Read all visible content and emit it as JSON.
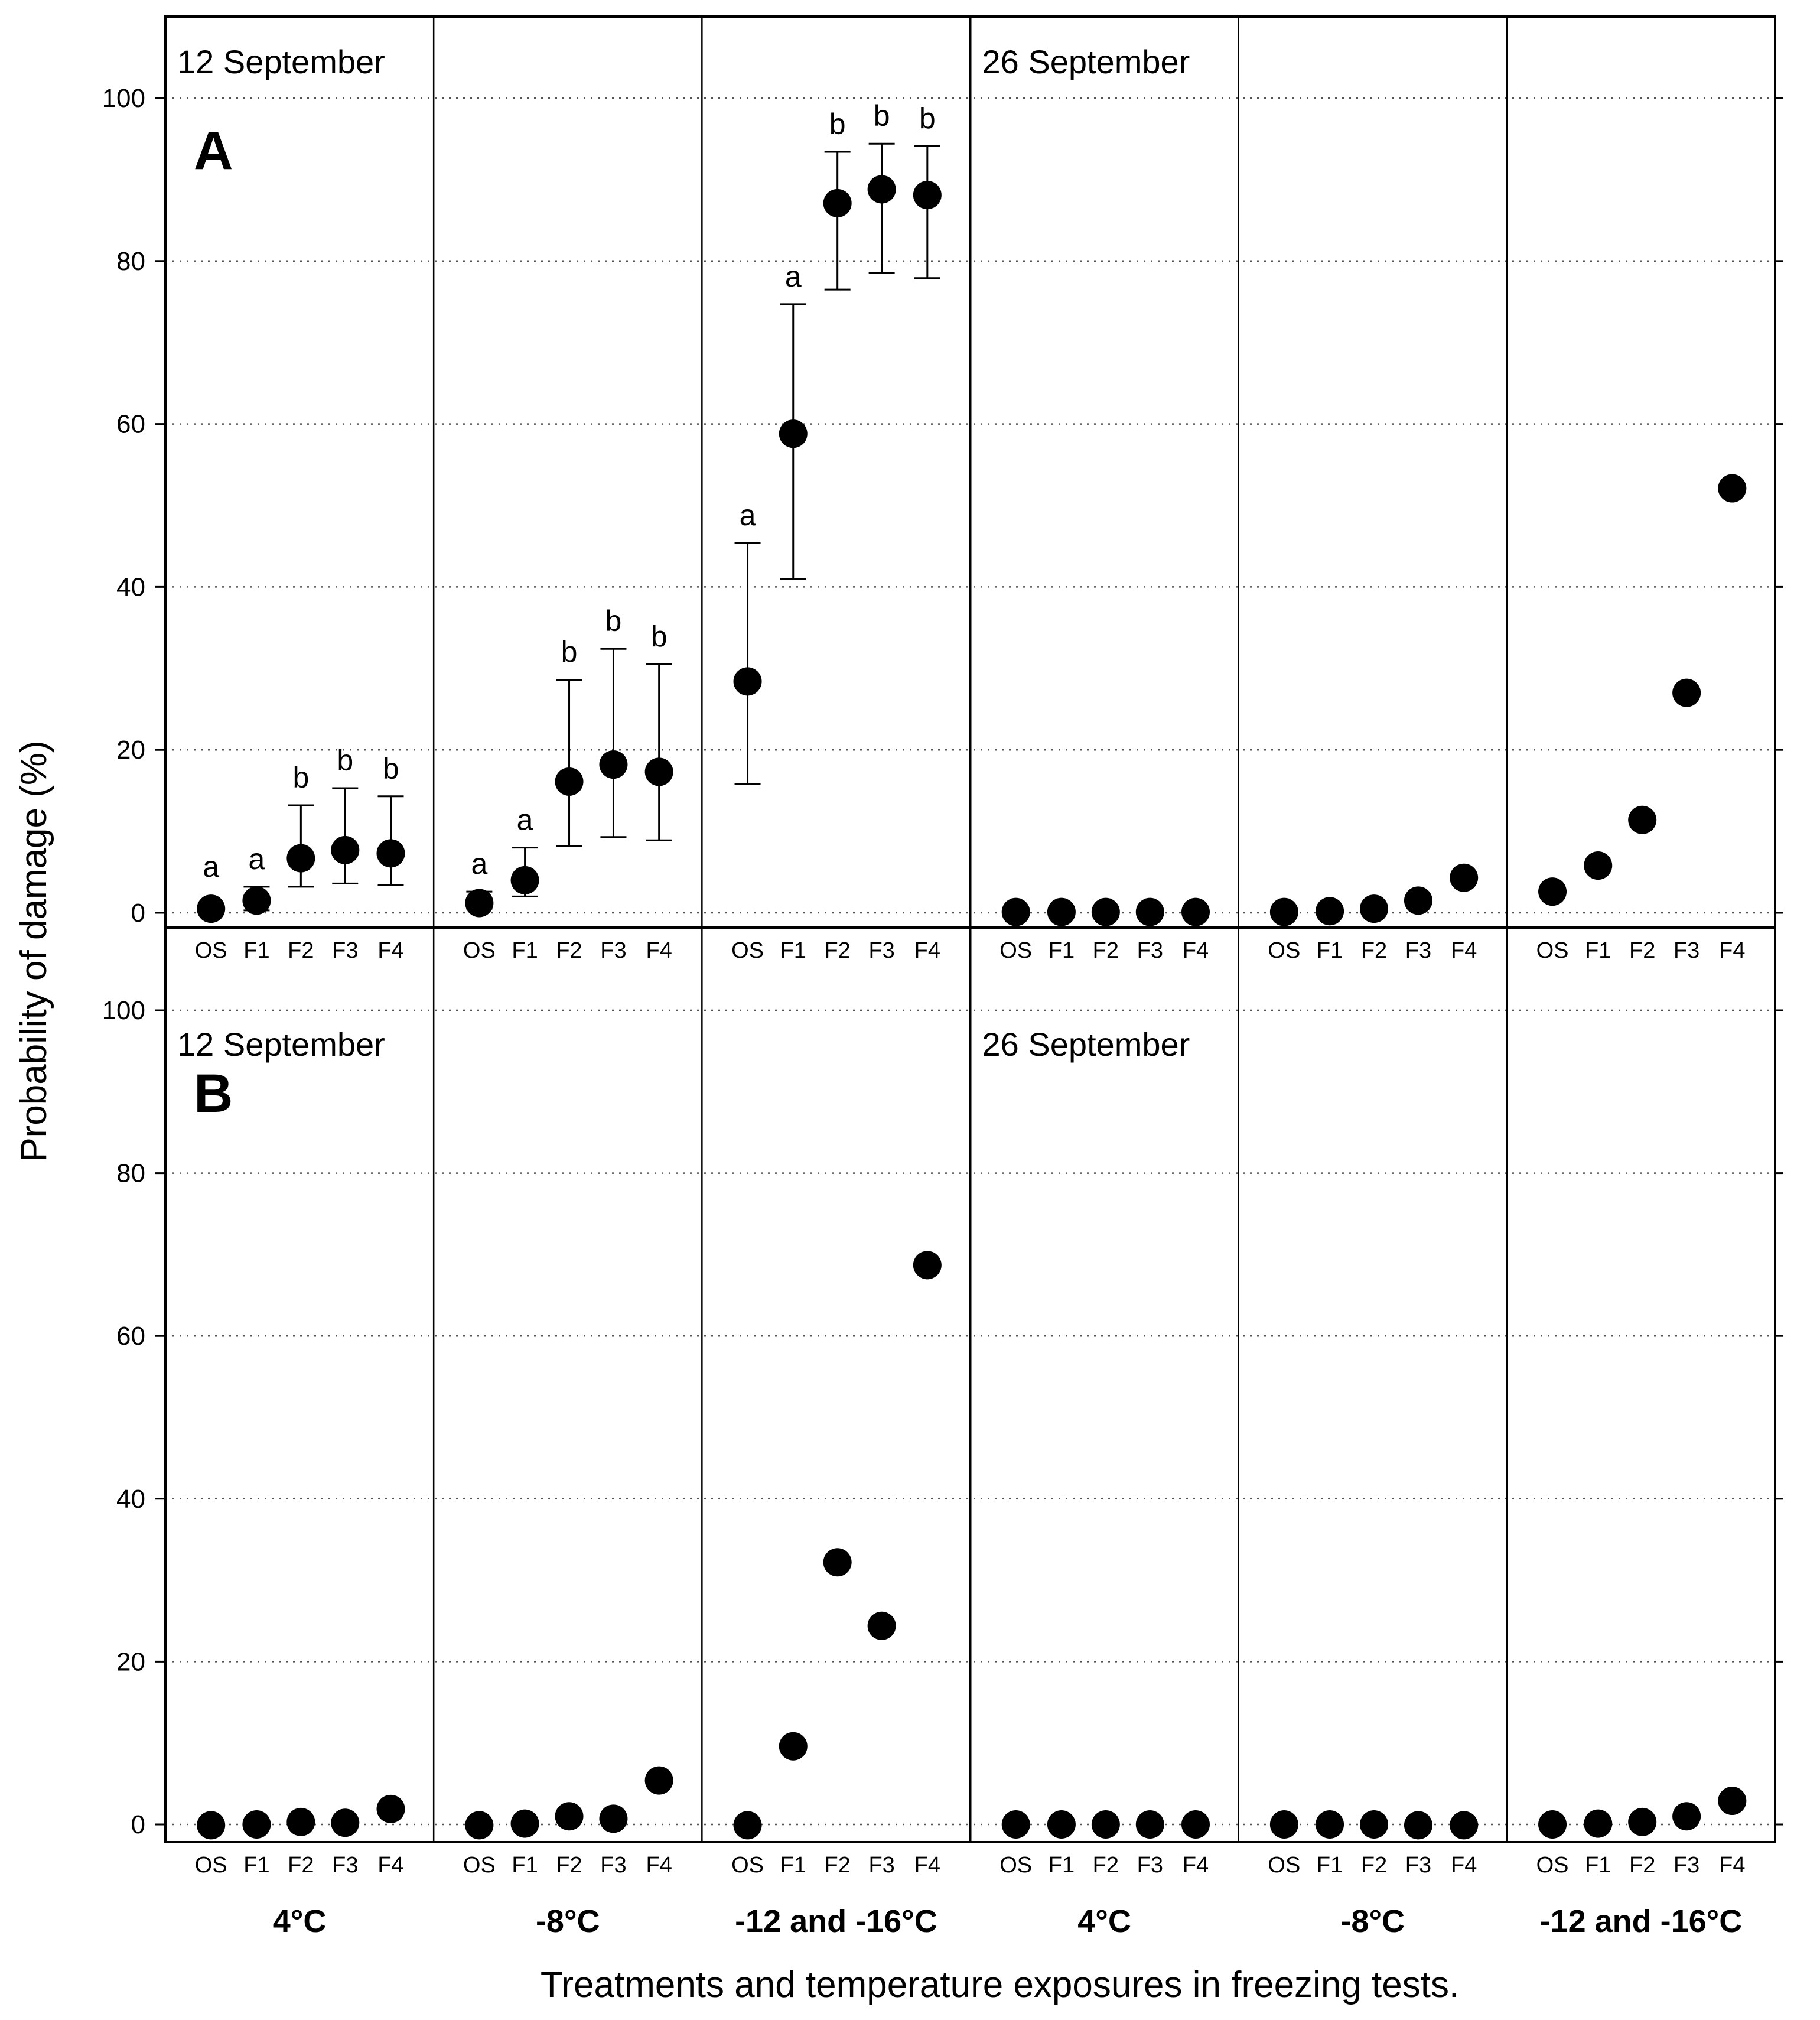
{
  "chart_data": {
    "type": "scatter",
    "y_axis_title": "Probability of damage (%)",
    "x_axis_title": "Treatments and temperature exposures in freezing tests.",
    "categories": [
      "OS",
      "F1",
      "F2",
      "F3",
      "F4"
    ],
    "groups": [
      "4°C",
      "-8°C",
      "-12 and -16°C"
    ],
    "y_ticks": [
      0,
      20,
      40,
      60,
      80,
      100
    ],
    "ylim": [
      -2,
      110
    ],
    "grid": "horizontal dotted",
    "panels": [
      {
        "id": "A",
        "letter": "A",
        "dates": [
          {
            "label": "12 September",
            "groups": [
              {
                "values": [
                  0.5,
                  1.5,
                  6.7,
                  7.7,
                  7.3
                ],
                "err_low": [
                  null,
                  0.3,
                  3.2,
                  3.6,
                  3.4
                ],
                "err_high": [
                  null,
                  3.2,
                  13.2,
                  15.3,
                  14.3
                ],
                "letters": [
                  "a",
                  "a",
                  "b",
                  "b",
                  "b"
                ]
              },
              {
                "values": [
                  1.2,
                  4.0,
                  16.1,
                  18.2,
                  17.3
                ],
                "err_low": [
                  0.5,
                  2.0,
                  8.2,
                  9.3,
                  8.9
                ],
                "err_high": [
                  2.6,
                  8.0,
                  28.6,
                  32.4,
                  30.5
                ],
                "letters": [
                  "a",
                  "a",
                  "b",
                  "b",
                  "b"
                ]
              },
              {
                "values": [
                  28.4,
                  58.8,
                  87.1,
                  88.8,
                  88.1
                ],
                "err_low": [
                  15.8,
                  41.0,
                  76.5,
                  78.5,
                  77.9
                ],
                "err_high": [
                  45.4,
                  74.7,
                  93.4,
                  94.4,
                  94.1
                ],
                "letters": [
                  "a",
                  "a",
                  "b",
                  "b",
                  "b"
                ]
              }
            ]
          },
          {
            "label": "26 September",
            "groups": [
              {
                "values": [
                  0.1,
                  0.1,
                  0.1,
                  0.1,
                  0.1
                ]
              },
              {
                "values": [
                  0.1,
                  0.2,
                  0.5,
                  1.5,
                  4.3
                ]
              },
              {
                "values": [
                  2.6,
                  5.8,
                  11.4,
                  27.0,
                  52.1
                ]
              }
            ]
          }
        ]
      },
      {
        "id": "B",
        "letter": "B",
        "dates": [
          {
            "label": "12 September",
            "groups": [
              {
                "values": [
                  -0.1,
                  0.0,
                  0.3,
                  0.2,
                  1.9
                ]
              },
              {
                "values": [
                  -0.1,
                  0.1,
                  1.0,
                  0.7,
                  5.4
                ]
              },
              {
                "values": [
                  -0.1,
                  9.6,
                  32.2,
                  24.4,
                  68.7
                ]
              }
            ]
          },
          {
            "label": "26 September",
            "groups": [
              {
                "values": [
                  0.0,
                  0.0,
                  0.0,
                  0.0,
                  0.0
                ]
              },
              {
                "values": [
                  0.0,
                  0.0,
                  0.0,
                  -0.1,
                  -0.1
                ]
              },
              {
                "values": [
                  0.0,
                  0.1,
                  0.3,
                  1.0,
                  2.9
                ]
              }
            ]
          }
        ]
      }
    ]
  }
}
